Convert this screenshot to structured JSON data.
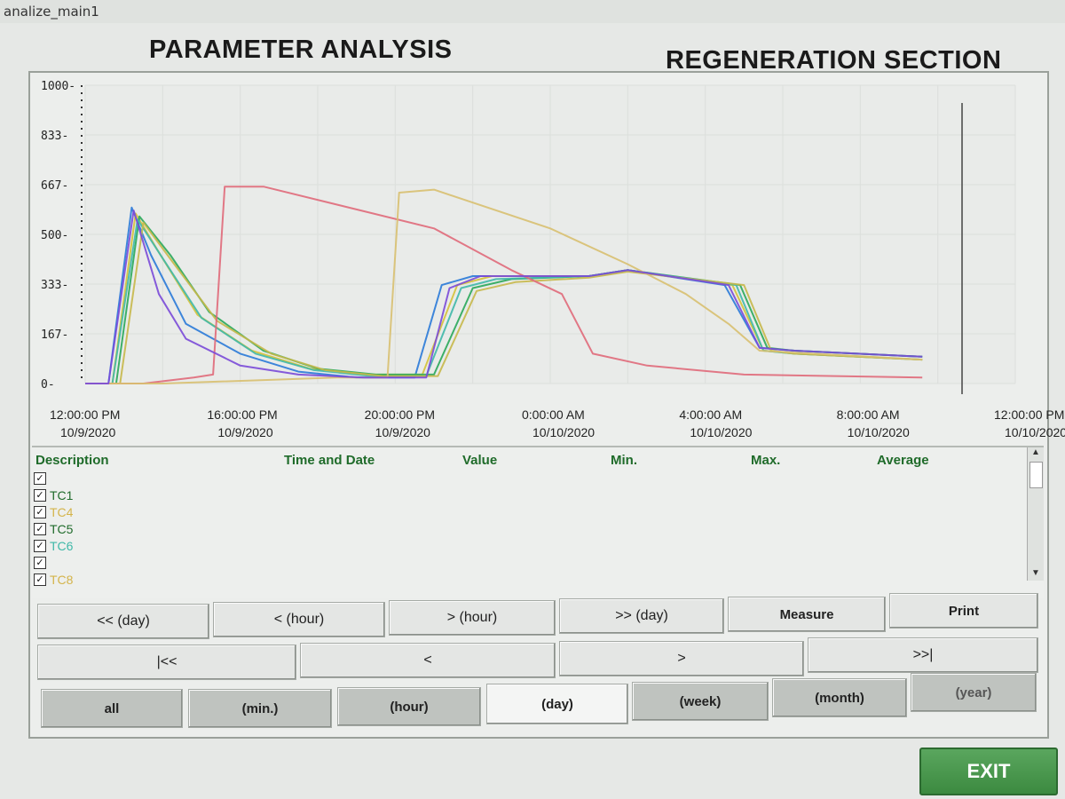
{
  "window": {
    "title": "analize_main1"
  },
  "header": {
    "title_left": "PARAMETER ANALYSIS",
    "title_right": "REGENERATION SECTION"
  },
  "chart_data": {
    "type": "line",
    "ylim": [
      0,
      1000
    ],
    "y_ticks": [
      "1000-",
      "833-",
      "667-",
      "500-",
      "333-",
      "167-",
      "0-"
    ],
    "x_ticks": [
      {
        "time": "12:00:00 PM",
        "date": "10/9/2020"
      },
      {
        "time": "16:00:00 PM",
        "date": "10/9/2020"
      },
      {
        "time": "20:00:00 PM",
        "date": "10/9/2020"
      },
      {
        "time": "0:00:00 AM",
        "date": "10/10/2020"
      },
      {
        "time": "4:00:00 AM",
        "date": "10/10/2020"
      },
      {
        "time": "8:00:00 AM",
        "date": "10/10/2020"
      },
      {
        "time": "12:00:00 PM",
        "date": "10/10/2020"
      }
    ],
    "x_unit": "hours since 12:00:00 PM 10/9/2020",
    "xlim": [
      0,
      24
    ],
    "series": [
      {
        "color": "#2a7ad8",
        "points": [
          [
            0,
            0
          ],
          [
            0.6,
            0
          ],
          [
            1.2,
            590
          ],
          [
            1.7,
            430
          ],
          [
            2.6,
            200
          ],
          [
            4,
            100
          ],
          [
            5.5,
            40
          ],
          [
            7,
            20
          ],
          [
            8.5,
            20
          ],
          [
            9.2,
            330
          ],
          [
            10,
            360
          ],
          [
            13,
            360
          ],
          [
            14,
            380
          ],
          [
            16.5,
            330
          ],
          [
            17.4,
            120
          ],
          [
            18.3,
            110
          ],
          [
            21.6,
            90
          ]
        ]
      },
      {
        "color": "#d4c23a",
        "points": [
          [
            0,
            0
          ],
          [
            0.7,
            0
          ],
          [
            1.3,
            570
          ],
          [
            1.9,
            440
          ],
          [
            2.9,
            230
          ],
          [
            4.3,
            110
          ],
          [
            5.8,
            50
          ],
          [
            7.3,
            30
          ],
          [
            8.7,
            30
          ],
          [
            9.6,
            330
          ],
          [
            10.5,
            360
          ],
          [
            13,
            360
          ],
          [
            14,
            380
          ],
          [
            16.7,
            330
          ],
          [
            17.5,
            110
          ],
          [
            18.3,
            100
          ],
          [
            21.6,
            80
          ]
        ]
      },
      {
        "color": "#2aa85a",
        "points": [
          [
            0,
            0
          ],
          [
            0.8,
            0
          ],
          [
            1.4,
            560
          ],
          [
            2.2,
            430
          ],
          [
            3.2,
            240
          ],
          [
            4.6,
            110
          ],
          [
            6,
            50
          ],
          [
            7.5,
            30
          ],
          [
            9,
            30
          ],
          [
            10,
            320
          ],
          [
            11,
            350
          ],
          [
            13,
            360
          ],
          [
            14,
            380
          ],
          [
            16.9,
            330
          ],
          [
            17.6,
            120
          ],
          [
            18.3,
            110
          ],
          [
            21.6,
            90
          ]
        ]
      },
      {
        "color": "#3fb8a8",
        "points": [
          [
            0,
            0
          ],
          [
            0.7,
            0
          ],
          [
            1.35,
            550
          ],
          [
            2,
            420
          ],
          [
            3,
            220
          ],
          [
            4.4,
            100
          ],
          [
            5.9,
            45
          ],
          [
            7.4,
            25
          ],
          [
            8.8,
            25
          ],
          [
            9.7,
            320
          ],
          [
            10.6,
            350
          ],
          [
            13,
            360
          ],
          [
            14,
            380
          ],
          [
            16.8,
            330
          ],
          [
            17.5,
            110
          ],
          [
            18.3,
            100
          ],
          [
            21.6,
            80
          ]
        ]
      },
      {
        "color": "#c6b84a",
        "points": [
          [
            0,
            0
          ],
          [
            0.9,
            0
          ],
          [
            1.5,
            540
          ],
          [
            2.3,
            400
          ],
          [
            3.4,
            210
          ],
          [
            4.8,
            100
          ],
          [
            6.2,
            45
          ],
          [
            7.7,
            25
          ],
          [
            9.1,
            25
          ],
          [
            10.1,
            310
          ],
          [
            11.1,
            340
          ],
          [
            13,
            355
          ],
          [
            14,
            375
          ],
          [
            17,
            330
          ],
          [
            17.7,
            110
          ],
          [
            18.3,
            100
          ],
          [
            21.6,
            80
          ]
        ]
      },
      {
        "color": "#e06a7a",
        "points": [
          [
            0,
            0
          ],
          [
            1.5,
            0
          ],
          [
            2.8,
            20
          ],
          [
            3.3,
            30
          ],
          [
            3.6,
            660
          ],
          [
            4.6,
            660
          ],
          [
            9,
            520
          ],
          [
            11,
            380
          ],
          [
            12.3,
            300
          ],
          [
            13.1,
            100
          ],
          [
            14.5,
            60
          ],
          [
            17,
            30
          ],
          [
            21.6,
            20
          ]
        ]
      },
      {
        "color": "#d8c070",
        "points": [
          [
            0,
            0
          ],
          [
            2,
            0
          ],
          [
            6.5,
            20
          ],
          [
            7.8,
            20
          ],
          [
            8.1,
            640
          ],
          [
            9,
            650
          ],
          [
            12,
            520
          ],
          [
            14,
            400
          ],
          [
            15.5,
            300
          ],
          [
            16.6,
            200
          ],
          [
            17.4,
            110
          ],
          [
            21.6,
            80
          ]
        ]
      },
      {
        "color": "#7a4ad8",
        "points": [
          [
            0,
            0
          ],
          [
            0.6,
            0
          ],
          [
            1.25,
            580
          ],
          [
            1.9,
            300
          ],
          [
            2.6,
            150
          ],
          [
            4,
            60
          ],
          [
            5.5,
            30
          ],
          [
            7.2,
            20
          ],
          [
            8.8,
            20
          ],
          [
            9.4,
            320
          ],
          [
            10.2,
            360
          ],
          [
            13,
            360
          ],
          [
            14,
            380
          ],
          [
            16.6,
            330
          ],
          [
            17.4,
            120
          ],
          [
            18.3,
            110
          ],
          [
            21.6,
            90
          ]
        ]
      }
    ]
  },
  "table": {
    "headers": {
      "description": "Description",
      "time_and_date": "Time and Date",
      "value": "Value",
      "min": "Min.",
      "max": "Max.",
      "average": "Average"
    },
    "rows": [
      {
        "label": "",
        "color": "#222222",
        "checked": "✓"
      },
      {
        "label": "TC1",
        "color": "#1f6b2a",
        "checked": "✓"
      },
      {
        "label": "TC4",
        "color": "#d4b44a",
        "checked": "✓"
      },
      {
        "label": "TC5",
        "color": "#1f6b2a",
        "checked": "✓"
      },
      {
        "label": "TC6",
        "color": "#3fb8a8",
        "checked": "✓"
      },
      {
        "label": "",
        "color": "#222222",
        "checked": "✓"
      },
      {
        "label": "TC8",
        "color": "#d4b44a",
        "checked": "✓"
      }
    ]
  },
  "nav": {
    "prev_day": "<< (day)",
    "prev_hour": "< (hour)",
    "next_hour": "> (hour)",
    "next_day": ">> (day)",
    "measure": "Measure",
    "print": "Print",
    "first": "|<<",
    "prev": "<",
    "next": ">",
    "last": ">>|"
  },
  "range": {
    "all": "all",
    "min": "(min.)",
    "hour": "(hour)",
    "day": "(day)",
    "week": "(week)",
    "month": "(month)",
    "year": "(year)"
  },
  "exit_label": "EXIT"
}
